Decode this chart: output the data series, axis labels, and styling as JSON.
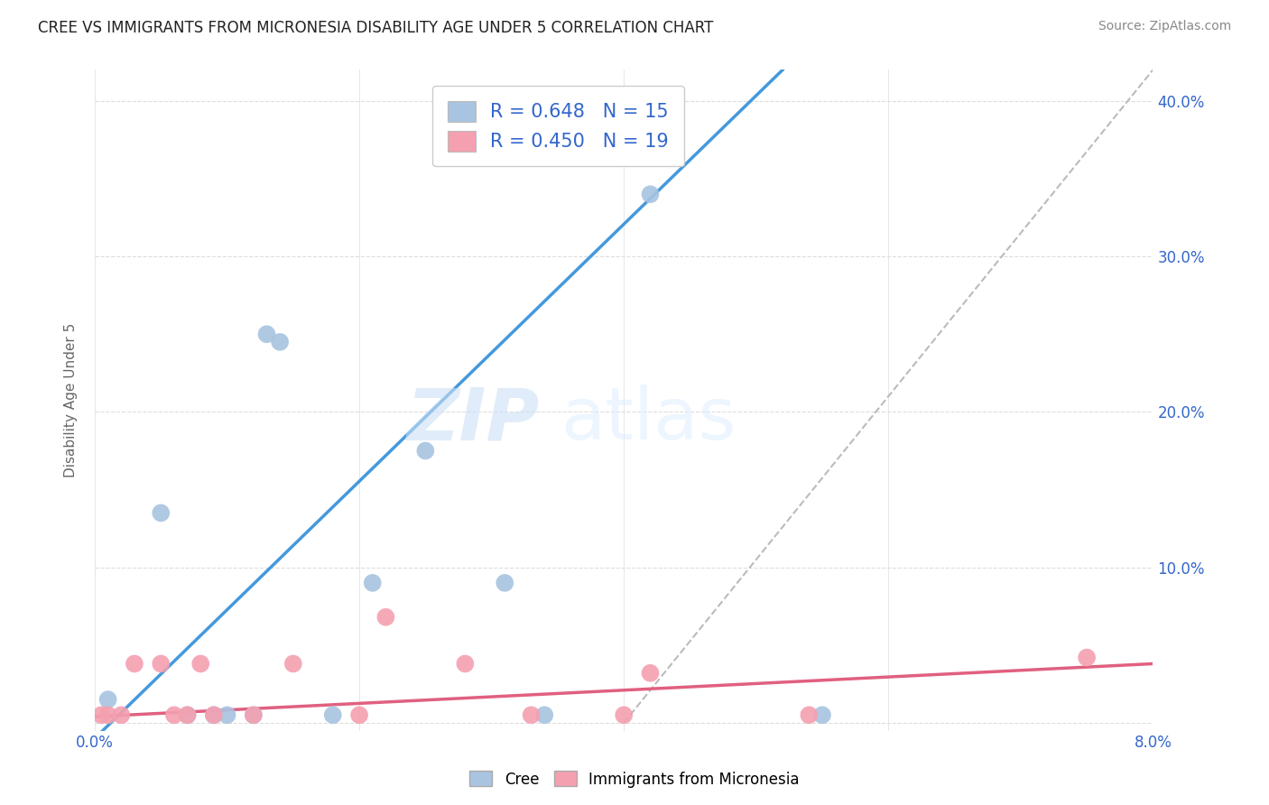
{
  "title": "CREE VS IMMIGRANTS FROM MICRONESIA DISABILITY AGE UNDER 5 CORRELATION CHART",
  "source": "Source: ZipAtlas.com",
  "ylabel": "Disability Age Under 5",
  "watermark": "ZIPatlas",
  "cree_R": 0.648,
  "cree_N": 15,
  "micro_R": 0.45,
  "micro_N": 19,
  "cree_color": "#a8c4e0",
  "micro_color": "#f4a0b0",
  "cree_line_color": "#4499dd",
  "micro_line_color": "#e06080",
  "diag_line_color": "#bbbbbb",
  "bg_color": "#ffffff",
  "grid_color": "#dddddd",
  "cree_points_x": [
    0.001,
    0.005,
    0.007,
    0.009,
    0.01,
    0.012,
    0.013,
    0.014,
    0.018,
    0.021,
    0.025,
    0.031,
    0.034,
    0.042,
    0.055
  ],
  "cree_points_y": [
    0.015,
    0.135,
    0.005,
    0.005,
    0.005,
    0.005,
    0.25,
    0.245,
    0.005,
    0.09,
    0.175,
    0.09,
    0.005,
    0.34,
    0.005
  ],
  "micro_points_x": [
    0.0005,
    0.001,
    0.002,
    0.003,
    0.005,
    0.006,
    0.007,
    0.008,
    0.009,
    0.012,
    0.015,
    0.02,
    0.022,
    0.028,
    0.033,
    0.04,
    0.042,
    0.054,
    0.075
  ],
  "micro_points_y": [
    0.005,
    0.005,
    0.005,
    0.038,
    0.038,
    0.005,
    0.005,
    0.038,
    0.005,
    0.005,
    0.038,
    0.005,
    0.068,
    0.038,
    0.005,
    0.005,
    0.032,
    0.005,
    0.042
  ],
  "cree_line_x0": 0.0,
  "cree_line_y0": -0.01,
  "cree_line_x1": 0.052,
  "cree_line_y1": 0.42,
  "micro_line_x0": 0.0,
  "micro_line_y0": 0.004,
  "micro_line_x1": 0.08,
  "micro_line_y1": 0.038,
  "diag_line_x0": 0.04,
  "diag_line_y0": 0.0,
  "diag_line_x1": 0.08,
  "diag_line_y1": 0.42,
  "xlim": [
    0.0,
    0.08
  ],
  "ylim": [
    -0.005,
    0.42
  ],
  "yticks": [
    0.0,
    0.1,
    0.2,
    0.3,
    0.4
  ],
  "ytick_labels_right": [
    "",
    "10.0%",
    "20.0%",
    "30.0%",
    "40.0%"
  ],
  "xticks": [
    0.0,
    0.02,
    0.04,
    0.06,
    0.08
  ],
  "xtick_labels": [
    "0.0%",
    "",
    "",
    "",
    "8.0%"
  ]
}
